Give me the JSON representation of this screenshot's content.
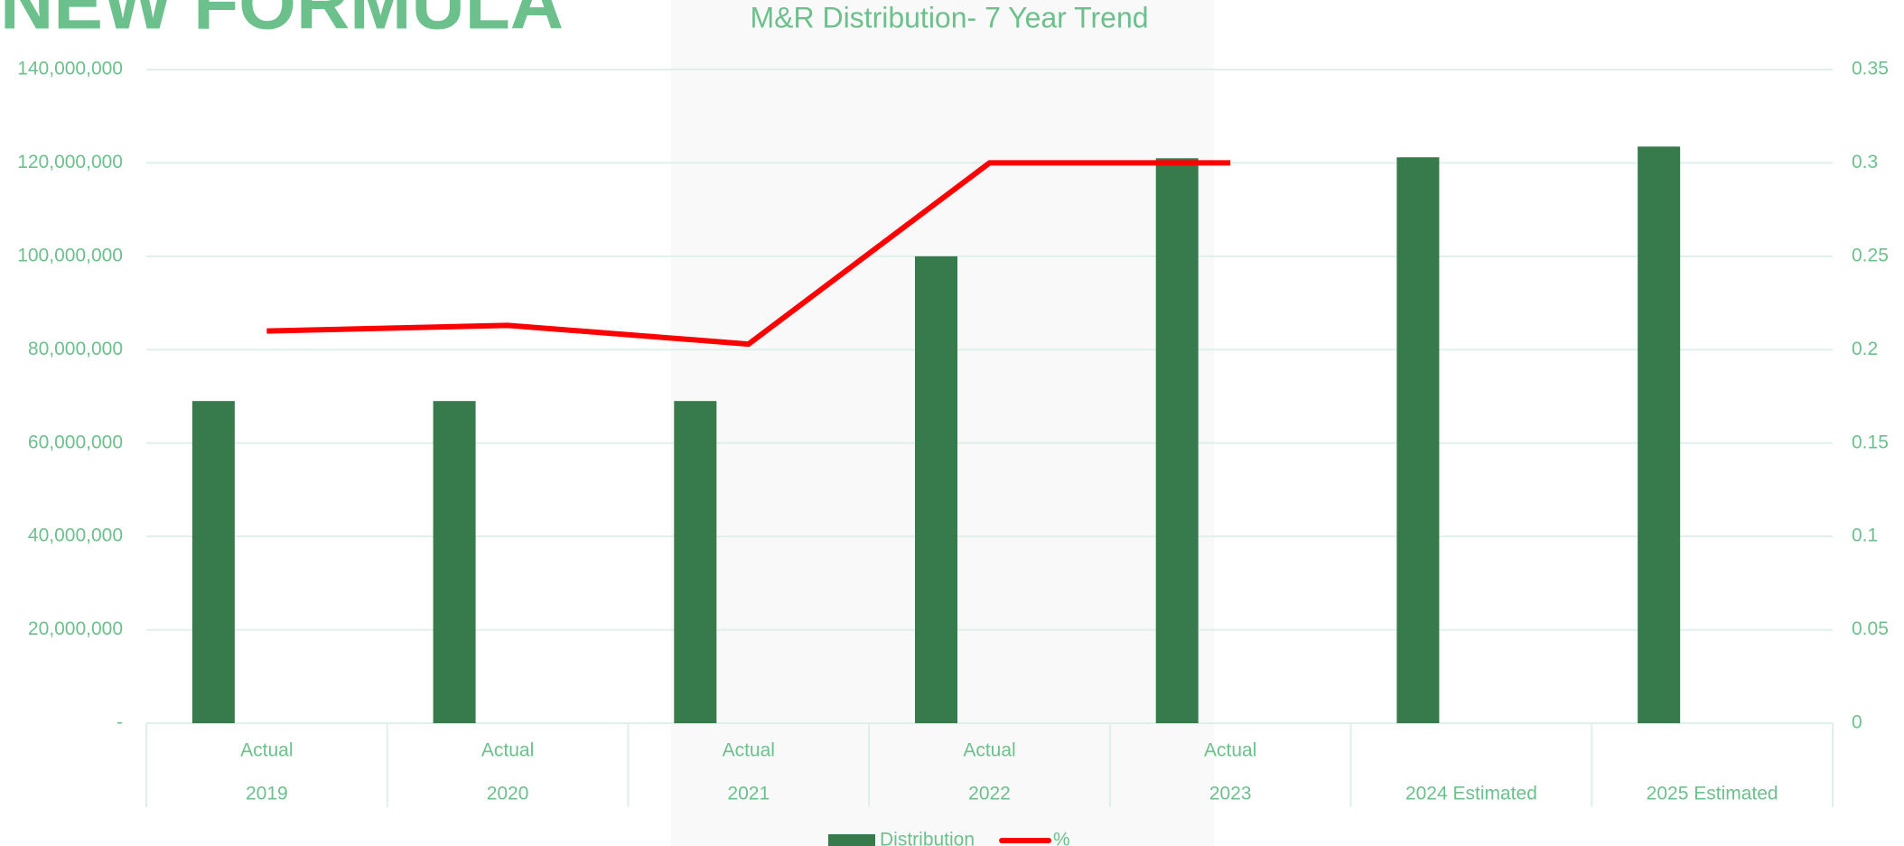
{
  "header_text": "NEW FORMULA",
  "chart_data": {
    "type": "bar-line",
    "title": "M&R Distribution- 7 Year Trend",
    "categories": [
      "2019",
      "2020",
      "2021",
      "2022",
      "2023",
      "2024 Estimated",
      "2025 Estimated"
    ],
    "category_groups": [
      "Actual",
      "Actual",
      "Actual",
      "Actual",
      "Actual",
      null,
      null
    ],
    "series": [
      {
        "name": "Distribution",
        "type": "bar",
        "color": "#377a4c",
        "values": [
          69000000,
          69000000,
          69000000,
          100000000,
          121000000,
          121200000,
          123500000
        ]
      },
      {
        "name": "%",
        "type": "line",
        "axis": "y2",
        "color": "#ff0000",
        "values": [
          0.21,
          0.213,
          0.203,
          0.3,
          0.3,
          null,
          null
        ]
      }
    ],
    "ylim": [
      0,
      140000000
    ],
    "yticks": [
      {
        "value": 0,
        "label": "-"
      },
      {
        "value": 20000000,
        "label": "20,000,000"
      },
      {
        "value": 40000000,
        "label": "40,000,000"
      },
      {
        "value": 60000000,
        "label": "60,000,000"
      },
      {
        "value": 80000000,
        "label": "80,000,000"
      },
      {
        "value": 100000000,
        "label": "100,000,000"
      },
      {
        "value": 120000000,
        "label": "120,000,000"
      },
      {
        "value": 140000000,
        "label": "140,000,000"
      }
    ],
    "y2lim": [
      0,
      0.35
    ],
    "y2ticks": [
      0,
      0.05,
      0.1,
      0.15,
      0.2,
      0.25,
      0.3,
      0.35
    ],
    "grid": true,
    "legend": "bottom"
  }
}
